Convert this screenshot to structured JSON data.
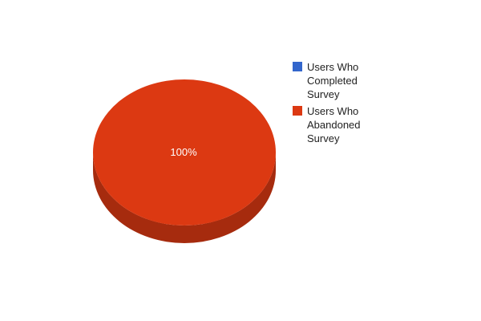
{
  "chart_data": {
    "type": "pie",
    "three_d": true,
    "categories": [
      "Users Who Completed Survey",
      "Users Who Abandoned Survey"
    ],
    "values": [
      0,
      100
    ],
    "data_labels": [
      "",
      "100%"
    ],
    "colors": [
      "#3366cc",
      "#dc3912"
    ],
    "side_color": "#a62b0e",
    "legend_position": "right"
  },
  "legend": {
    "items": [
      {
        "label": "Users Who Completed Survey",
        "color": "#3366cc"
      },
      {
        "label": "Users Who Abandoned Survey",
        "color": "#dc3912"
      }
    ]
  }
}
